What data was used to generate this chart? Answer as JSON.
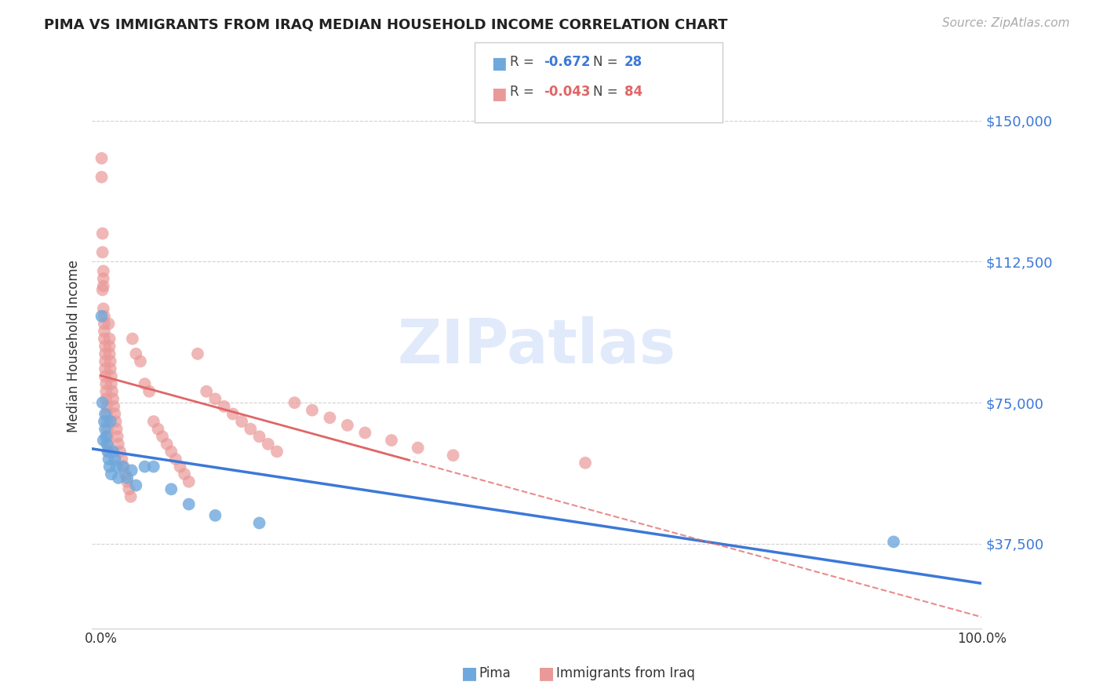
{
  "title": "PIMA VS IMMIGRANTS FROM IRAQ MEDIAN HOUSEHOLD INCOME CORRELATION CHART",
  "source": "Source: ZipAtlas.com",
  "ylabel": "Median Household Income",
  "legend_blue_r": "-0.672",
  "legend_blue_n": "28",
  "legend_pink_r": "-0.043",
  "legend_pink_n": "84",
  "legend_label_blue": "Pima",
  "legend_label_pink": "Immigrants from Iraq",
  "watermark": "ZIPatlas",
  "blue_color": "#6fa8dc",
  "pink_color": "#ea9999",
  "blue_line_color": "#3c78d8",
  "pink_line_color": "#e06666",
  "background_color": "#ffffff",
  "grid_color": "#cccccc",
  "pima_x": [
    0.001,
    0.002,
    0.003,
    0.004,
    0.005,
    0.005,
    0.006,
    0.007,
    0.008,
    0.009,
    0.01,
    0.011,
    0.012,
    0.014,
    0.016,
    0.018,
    0.02,
    0.025,
    0.03,
    0.035,
    0.04,
    0.05,
    0.06,
    0.08,
    0.1,
    0.13,
    0.18,
    0.9
  ],
  "pima_y": [
    98000,
    75000,
    65000,
    70000,
    68000,
    72000,
    66000,
    64000,
    62000,
    60000,
    58000,
    70000,
    56000,
    62000,
    60000,
    58000,
    55000,
    58000,
    55000,
    57000,
    53000,
    58000,
    58000,
    52000,
    48000,
    45000,
    43000,
    38000
  ],
  "iraq_x": [
    0.001,
    0.001,
    0.002,
    0.002,
    0.002,
    0.003,
    0.003,
    0.003,
    0.003,
    0.004,
    0.004,
    0.004,
    0.004,
    0.005,
    0.005,
    0.005,
    0.005,
    0.005,
    0.006,
    0.006,
    0.006,
    0.007,
    0.007,
    0.007,
    0.008,
    0.008,
    0.008,
    0.009,
    0.009,
    0.01,
    0.01,
    0.01,
    0.011,
    0.011,
    0.012,
    0.012,
    0.013,
    0.014,
    0.015,
    0.016,
    0.017,
    0.018,
    0.019,
    0.02,
    0.022,
    0.024,
    0.026,
    0.028,
    0.03,
    0.032,
    0.034,
    0.036,
    0.04,
    0.045,
    0.05,
    0.055,
    0.06,
    0.065,
    0.07,
    0.075,
    0.08,
    0.085,
    0.09,
    0.095,
    0.1,
    0.11,
    0.12,
    0.13,
    0.14,
    0.15,
    0.16,
    0.17,
    0.18,
    0.19,
    0.2,
    0.22,
    0.24,
    0.26,
    0.28,
    0.3,
    0.33,
    0.36,
    0.4,
    0.55
  ],
  "iraq_y": [
    140000,
    135000,
    120000,
    115000,
    105000,
    110000,
    108000,
    106000,
    100000,
    98000,
    96000,
    94000,
    92000,
    90000,
    88000,
    86000,
    84000,
    82000,
    80000,
    78000,
    76000,
    74000,
    72000,
    70000,
    68000,
    66000,
    64000,
    96000,
    62000,
    92000,
    90000,
    88000,
    86000,
    84000,
    82000,
    80000,
    78000,
    76000,
    74000,
    72000,
    70000,
    68000,
    66000,
    64000,
    62000,
    60000,
    58000,
    56000,
    54000,
    52000,
    50000,
    92000,
    88000,
    86000,
    80000,
    78000,
    70000,
    68000,
    66000,
    64000,
    62000,
    60000,
    58000,
    56000,
    54000,
    88000,
    78000,
    76000,
    74000,
    72000,
    70000,
    68000,
    66000,
    64000,
    62000,
    75000,
    73000,
    71000,
    69000,
    67000,
    65000,
    63000,
    61000,
    59000
  ],
  "ytick_vals": [
    37500,
    75000,
    112500,
    150000
  ],
  "ytick_labels": [
    "$37,500",
    "$75,000",
    "$112,500",
    "$150,000"
  ],
  "ymin": 15000,
  "ymax": 165000,
  "xmin": -0.01,
  "xmax": 1.0
}
